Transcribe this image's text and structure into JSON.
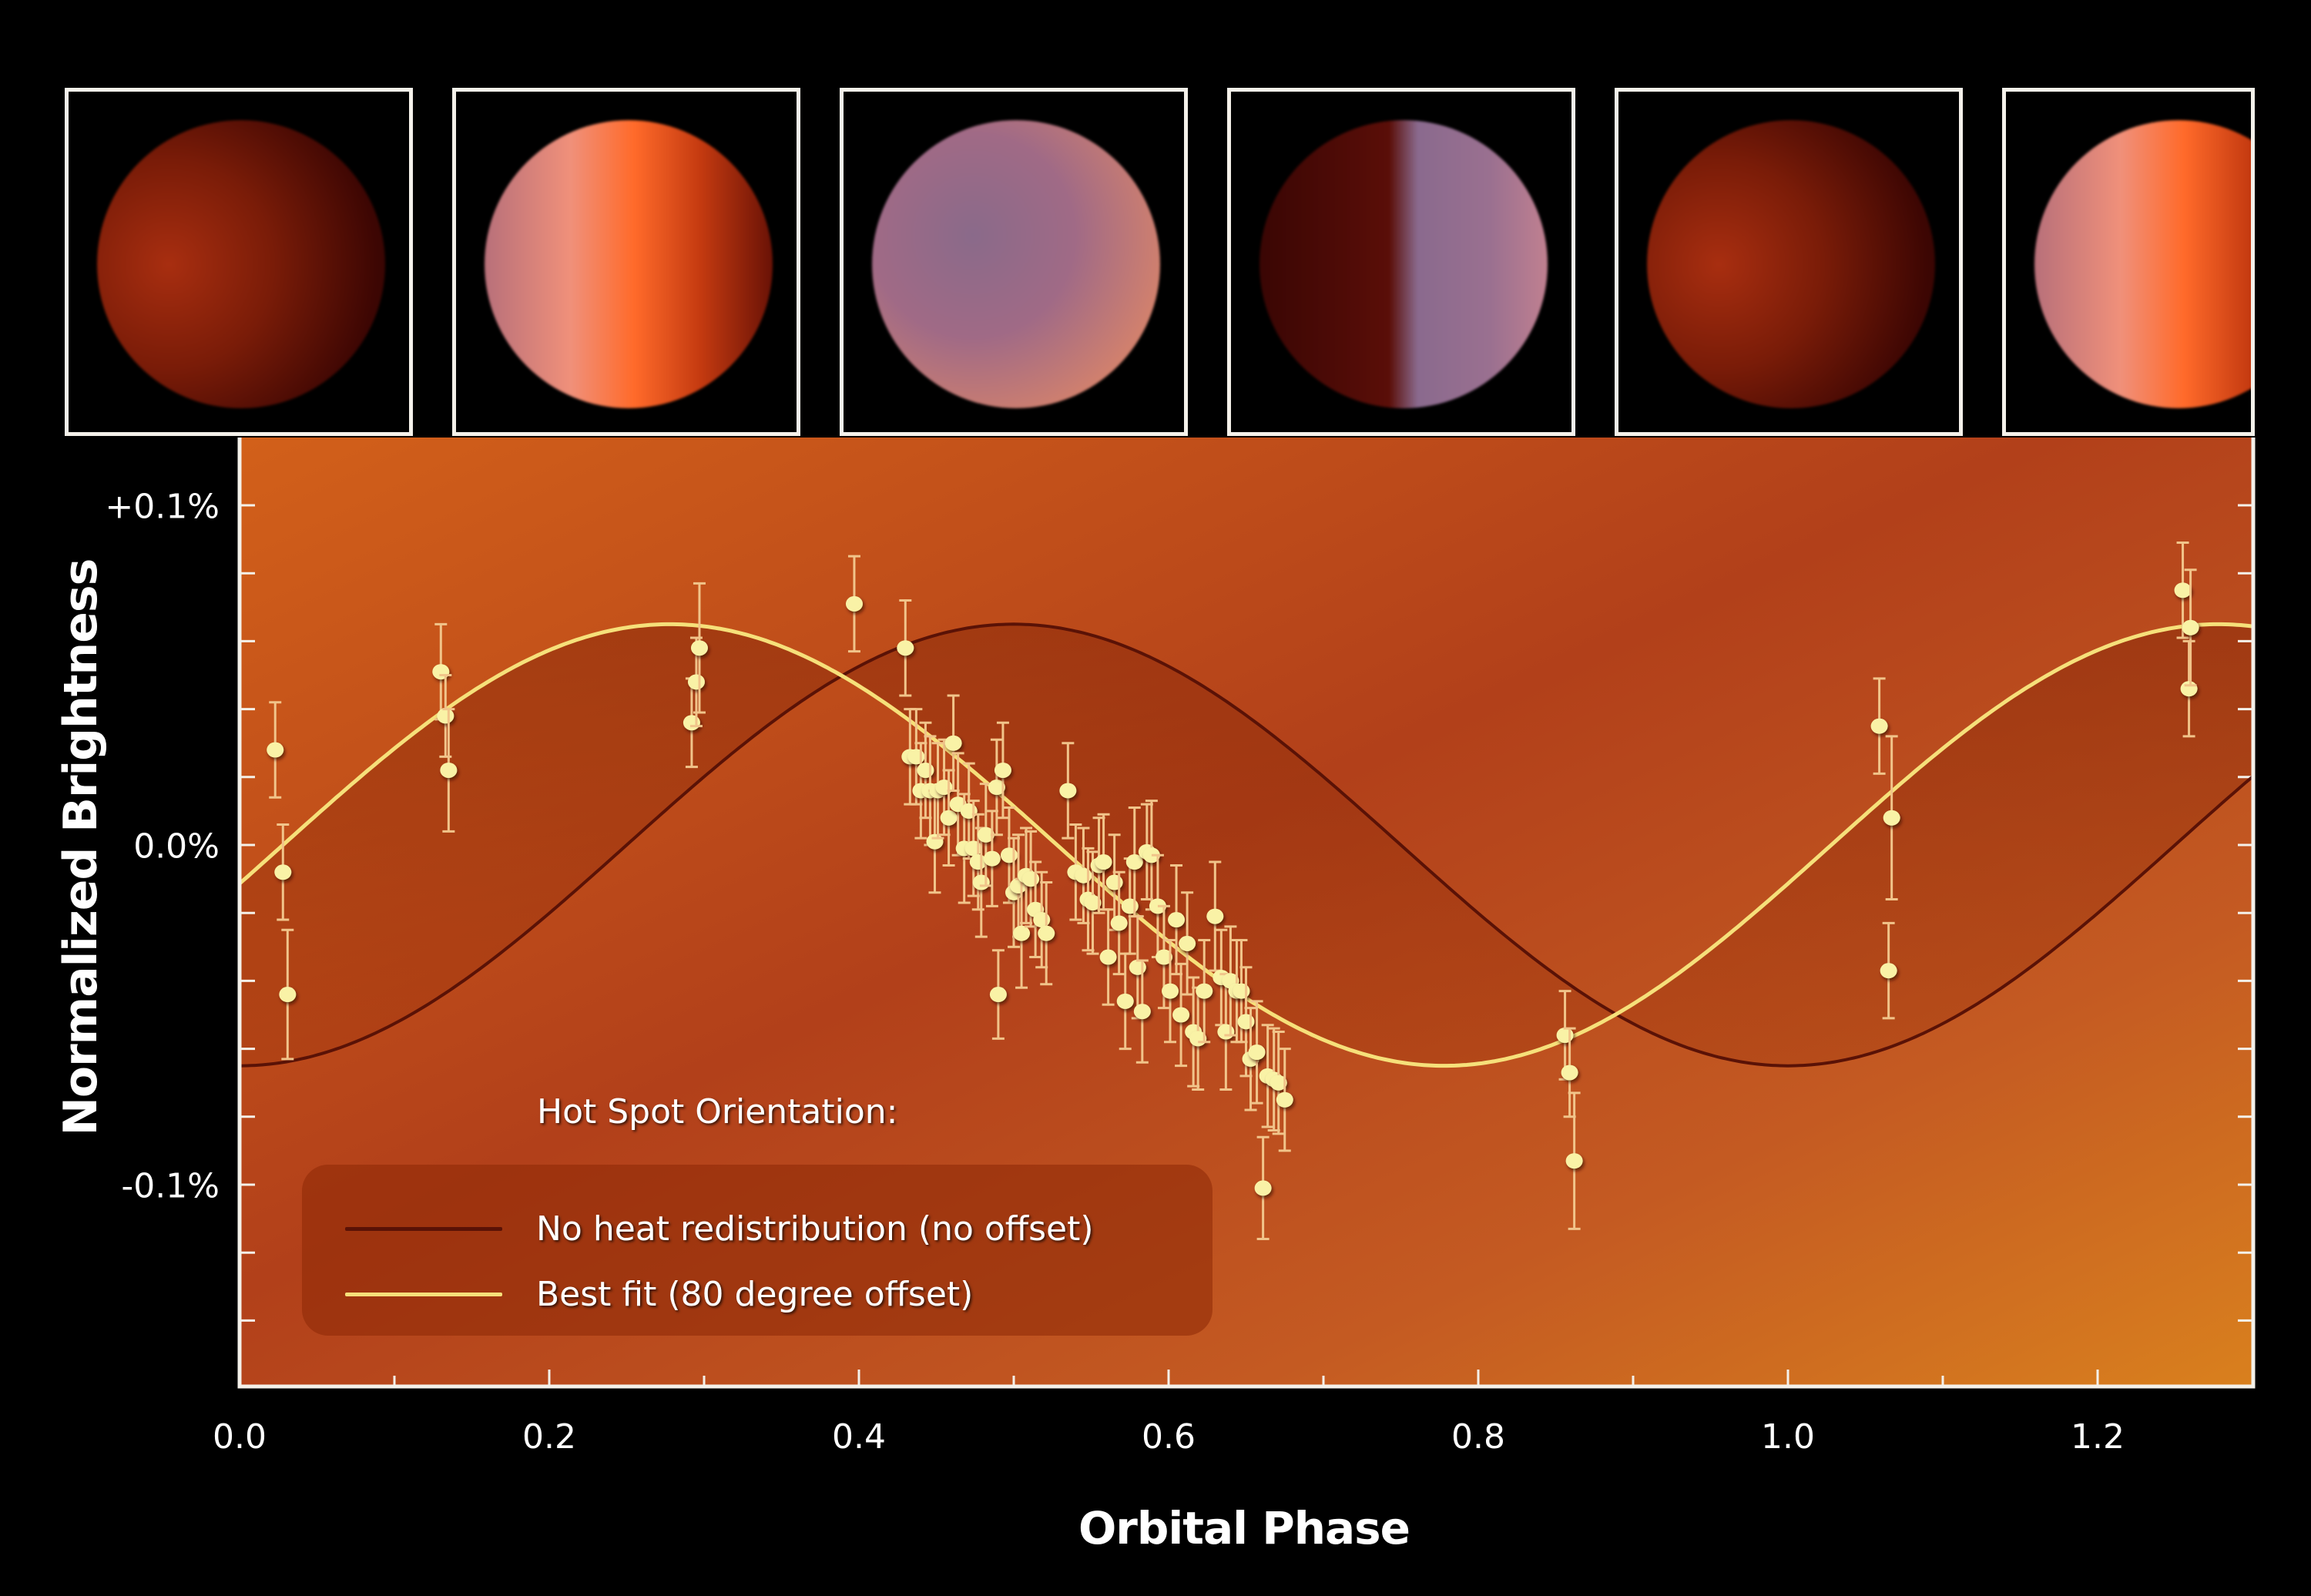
{
  "chart_data": {
    "type": "scatter",
    "title": "",
    "xlabel": "Orbital Phase",
    "ylabel": "Normalized Brightness",
    "xlim": [
      0.0,
      1.3
    ],
    "ylim": [
      -0.16,
      0.1
    ],
    "x_ticks": [
      {
        "value": 0.0,
        "label": "0.0"
      },
      {
        "value": 0.2,
        "label": "0.2"
      },
      {
        "value": 0.4,
        "label": "0.4"
      },
      {
        "value": 0.6,
        "label": "0.6"
      },
      {
        "value": 0.8,
        "label": "0.8"
      },
      {
        "value": 1.0,
        "label": "1.0"
      },
      {
        "value": 1.2,
        "label": "1.2"
      }
    ],
    "x_minor_step": 0.1,
    "y_ticks": [
      {
        "value": 0.1,
        "label": "+0.1%"
      },
      {
        "value": 0.0,
        "label": "0.0%"
      },
      {
        "value": -0.1,
        "label": "-0.1%"
      }
    ],
    "y_minor_step": 0.02,
    "grid": false,
    "legend_position": "lower-left",
    "legend_title": "Hot Spot Orientation:",
    "series": [
      {
        "name": "No heat redistribution (no offset)",
        "kind": "model-curve",
        "color": "#5a1206",
        "amplitude": 0.065,
        "peak_phase": 0.5,
        "period": 1.0,
        "description": "y = -0.065*cos(2*pi*x)"
      },
      {
        "name": "Best fit (80 degree offset)",
        "kind": "model-curve",
        "color": "#f6e07a",
        "amplitude": 0.065,
        "peak_phase": 0.278,
        "period": 1.0,
        "description": "y = -0.065*cos(2*pi*(x+0.222))"
      },
      {
        "name": "Observations",
        "kind": "points-with-error",
        "color": "#f9f2a6",
        "points": [
          {
            "x": 0.023,
            "y": 0.028,
            "err": 0.014
          },
          {
            "x": 0.028,
            "y": -0.008,
            "err": 0.014
          },
          {
            "x": 0.031,
            "y": -0.044,
            "err": 0.019
          },
          {
            "x": 0.13,
            "y": 0.051,
            "err": 0.014
          },
          {
            "x": 0.133,
            "y": 0.038,
            "err": 0.012
          },
          {
            "x": 0.135,
            "y": 0.022,
            "err": 0.018
          },
          {
            "x": 0.292,
            "y": 0.036,
            "err": 0.013
          },
          {
            "x": 0.295,
            "y": 0.048,
            "err": 0.013
          },
          {
            "x": 0.297,
            "y": 0.058,
            "err": 0.019
          },
          {
            "x": 0.397,
            "y": 0.071,
            "err": 0.014
          },
          {
            "x": 0.43,
            "y": 0.058,
            "err": 0.014
          },
          {
            "x": 0.433,
            "y": 0.026,
            "err": 0.014
          },
          {
            "x": 0.437,
            "y": 0.026,
            "err": 0.014
          },
          {
            "x": 0.44,
            "y": 0.016,
            "err": 0.014
          },
          {
            "x": 0.443,
            "y": 0.022,
            "err": 0.014
          },
          {
            "x": 0.446,
            "y": 0.016,
            "err": 0.016
          },
          {
            "x": 0.449,
            "y": 0.001,
            "err": 0.015
          },
          {
            "x": 0.451,
            "y": 0.016,
            "err": 0.014
          },
          {
            "x": 0.455,
            "y": 0.017,
            "err": 0.014
          },
          {
            "x": 0.458,
            "y": 0.008,
            "err": 0.014
          },
          {
            "x": 0.461,
            "y": 0.03,
            "err": 0.014
          },
          {
            "x": 0.464,
            "y": 0.012,
            "err": 0.015
          },
          {
            "x": 0.468,
            "y": -0.001,
            "err": 0.016
          },
          {
            "x": 0.471,
            "y": 0.01,
            "err": 0.014
          },
          {
            "x": 0.474,
            "y": -0.001,
            "err": 0.014
          },
          {
            "x": 0.477,
            "y": -0.005,
            "err": 0.014
          },
          {
            "x": 0.479,
            "y": -0.011,
            "err": 0.016
          },
          {
            "x": 0.482,
            "y": 0.003,
            "err": 0.015
          },
          {
            "x": 0.486,
            "y": -0.004,
            "err": 0.014
          },
          {
            "x": 0.489,
            "y": 0.017,
            "err": 0.014
          },
          {
            "x": 0.49,
            "y": -0.044,
            "err": 0.013
          },
          {
            "x": 0.493,
            "y": 0.022,
            "err": 0.014
          },
          {
            "x": 0.497,
            "y": -0.003,
            "err": 0.014
          },
          {
            "x": 0.5,
            "y": -0.014,
            "err": 0.016
          },
          {
            "x": 0.503,
            "y": -0.012,
            "err": 0.015
          },
          {
            "x": 0.505,
            "y": -0.026,
            "err": 0.016
          },
          {
            "x": 0.508,
            "y": -0.009,
            "err": 0.014
          },
          {
            "x": 0.511,
            "y": -0.01,
            "err": 0.014
          },
          {
            "x": 0.514,
            "y": -0.019,
            "err": 0.014
          },
          {
            "x": 0.518,
            "y": -0.022,
            "err": 0.014
          },
          {
            "x": 0.521,
            "y": -0.026,
            "err": 0.015
          },
          {
            "x": 0.535,
            "y": 0.016,
            "err": 0.014
          },
          {
            "x": 0.54,
            "y": -0.008,
            "err": 0.014
          },
          {
            "x": 0.545,
            "y": -0.009,
            "err": 0.014
          },
          {
            "x": 0.548,
            "y": -0.016,
            "err": 0.015
          },
          {
            "x": 0.551,
            "y": -0.017,
            "err": 0.015
          },
          {
            "x": 0.555,
            "y": -0.006,
            "err": 0.014
          },
          {
            "x": 0.558,
            "y": -0.005,
            "err": 0.014
          },
          {
            "x": 0.561,
            "y": -0.033,
            "err": 0.014
          },
          {
            "x": 0.565,
            "y": -0.011,
            "err": 0.014
          },
          {
            "x": 0.568,
            "y": -0.023,
            "err": 0.015
          },
          {
            "x": 0.572,
            "y": -0.046,
            "err": 0.014
          },
          {
            "x": 0.575,
            "y": -0.018,
            "err": 0.014
          },
          {
            "x": 0.578,
            "y": -0.005,
            "err": 0.016
          },
          {
            "x": 0.58,
            "y": -0.036,
            "err": 0.015
          },
          {
            "x": 0.583,
            "y": -0.049,
            "err": 0.015
          },
          {
            "x": 0.586,
            "y": -0.002,
            "err": 0.014
          },
          {
            "x": 0.589,
            "y": -0.003,
            "err": 0.016
          },
          {
            "x": 0.593,
            "y": -0.018,
            "err": 0.015
          },
          {
            "x": 0.597,
            "y": -0.033,
            "err": 0.015
          },
          {
            "x": 0.601,
            "y": -0.043,
            "err": 0.015
          },
          {
            "x": 0.605,
            "y": -0.022,
            "err": 0.016
          },
          {
            "x": 0.608,
            "y": -0.05,
            "err": 0.015
          },
          {
            "x": 0.612,
            "y": -0.029,
            "err": 0.015
          },
          {
            "x": 0.616,
            "y": -0.055,
            "err": 0.016
          },
          {
            "x": 0.619,
            "y": -0.057,
            "err": 0.015
          },
          {
            "x": 0.623,
            "y": -0.043,
            "err": 0.015
          },
          {
            "x": 0.63,
            "y": -0.021,
            "err": 0.016
          },
          {
            "x": 0.634,
            "y": -0.039,
            "err": 0.014
          },
          {
            "x": 0.637,
            "y": -0.055,
            "err": 0.017
          },
          {
            "x": 0.64,
            "y": -0.04,
            "err": 0.016
          },
          {
            "x": 0.644,
            "y": -0.043,
            "err": 0.015
          },
          {
            "x": 0.647,
            "y": -0.043,
            "err": 0.015
          },
          {
            "x": 0.65,
            "y": -0.052,
            "err": 0.016
          },
          {
            "x": 0.653,
            "y": -0.063,
            "err": 0.015
          },
          {
            "x": 0.657,
            "y": -0.061,
            "err": 0.015
          },
          {
            "x": 0.661,
            "y": -0.101,
            "err": 0.015
          },
          {
            "x": 0.664,
            "y": -0.068,
            "err": 0.015
          },
          {
            "x": 0.668,
            "y": -0.069,
            "err": 0.015
          },
          {
            "x": 0.671,
            "y": -0.07,
            "err": 0.015
          },
          {
            "x": 0.675,
            "y": -0.075,
            "err": 0.015
          },
          {
            "x": 0.856,
            "y": -0.056,
            "err": 0.013
          },
          {
            "x": 0.859,
            "y": -0.067,
            "err": 0.013
          },
          {
            "x": 0.862,
            "y": -0.093,
            "err": 0.02
          },
          {
            "x": 1.059,
            "y": 0.035,
            "err": 0.014
          },
          {
            "x": 1.065,
            "y": -0.037,
            "err": 0.014
          },
          {
            "x": 1.067,
            "y": 0.008,
            "err": 0.024
          },
          {
            "x": 1.255,
            "y": 0.075,
            "err": 0.014
          },
          {
            "x": 1.259,
            "y": 0.046,
            "err": 0.014
          },
          {
            "x": 1.26,
            "y": 0.064,
            "err": 0.017
          }
        ]
      }
    ],
    "annotations": [
      "Six planet thumbnails above the plot show the planet's appearance at successive orbital phases"
    ]
  },
  "thumbnails": [
    {
      "label": "planet-phase-1",
      "style": "dark-night-side"
    },
    {
      "label": "planet-phase-2",
      "style": "bright-hot-spot-right"
    },
    {
      "label": "planet-phase-3",
      "style": "fully-lit-purple"
    },
    {
      "label": "planet-phase-4",
      "style": "half-dark-left"
    },
    {
      "label": "planet-phase-5",
      "style": "dark-night-side"
    },
    {
      "label": "planet-phase-6",
      "style": "bright-hot-spot-right"
    }
  ],
  "colors": {
    "background": "#000000",
    "plot_bg_light": "#d97a20",
    "plot_bg_dark": "#9a3410",
    "frame": "#f4f1ea",
    "point": "#f9f2a6",
    "errorbar": "#f1c48a",
    "best_fit": "#f6e07a",
    "no_offset": "#5a1206"
  }
}
